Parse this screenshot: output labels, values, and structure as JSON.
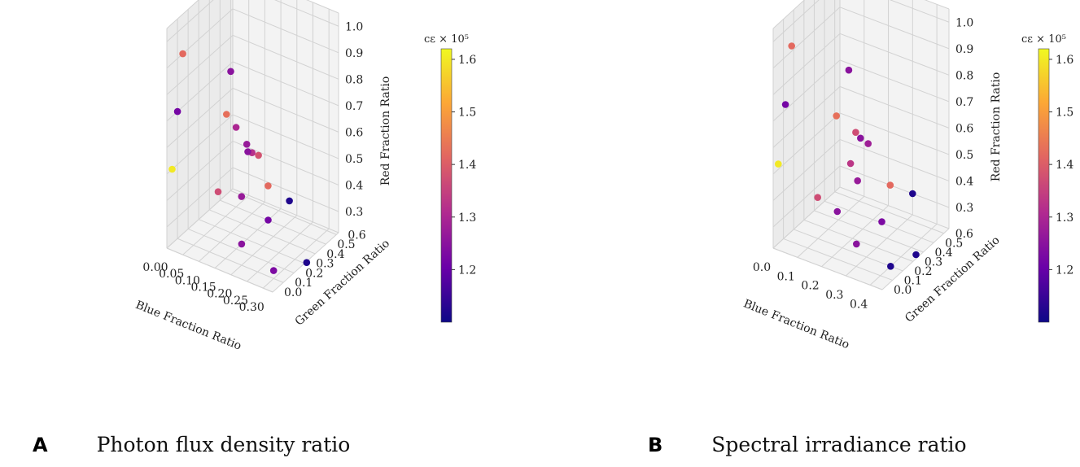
{
  "colors": {
    "grid": "#d2d2d2",
    "pane_light": "#f3f3f3",
    "pane_dark": "#ebebeb",
    "cmap": [
      "#0d0887",
      "#6a00a8",
      "#b12a90",
      "#e16462",
      "#fca636",
      "#f0f921"
    ]
  },
  "chart_data": [
    {
      "type": "scatter3d",
      "caption_letter": "A",
      "caption": "Photon flux density ratio",
      "xlabel": "Blue Fraction Ratio",
      "ylabel": "Green Fraction Ratio",
      "zlabel": "Red Fraction Ratio",
      "xlim": [
        0,
        0.33
      ],
      "ylim": [
        0,
        0.62
      ],
      "zlim": [
        0.22,
        1.05
      ],
      "xticks": [
        "0.00",
        "0.05",
        "0.10",
        "0.15",
        "0.20",
        "0.25",
        "0.30"
      ],
      "yticks": [
        "0.0",
        "0.1",
        "0.2",
        "0.3",
        "0.4",
        "0.5",
        "0.6"
      ],
      "zticks": [
        "0.3",
        "0.4",
        "0.5",
        "0.6",
        "0.7",
        "0.8",
        "0.9",
        "1.0"
      ],
      "colorbar_label": "cε × 10⁵",
      "colorbar_ticks": [
        "1.2",
        "1.3",
        "1.4",
        "1.5",
        "1.6"
      ],
      "colorbar_range": [
        1.1,
        1.62
      ],
      "points": [
        {
          "blue": 0.0,
          "green": 0.15,
          "red": 0.9,
          "c": 1.42
        },
        {
          "blue": 0.0,
          "green": 0.1,
          "red": 0.7,
          "c": 1.22
        },
        {
          "blue": 0.0,
          "green": 0.05,
          "red": 0.5,
          "c": 1.6
        },
        {
          "blue": 0.05,
          "green": 0.45,
          "red": 0.75,
          "c": 1.25
        },
        {
          "blue": 0.08,
          "green": 0.32,
          "red": 0.65,
          "c": 1.43
        },
        {
          "blue": 0.1,
          "green": 0.35,
          "red": 0.6,
          "c": 1.3
        },
        {
          "blue": 0.1,
          "green": 0.45,
          "red": 0.5,
          "c": 1.27
        },
        {
          "blue": 0.12,
          "green": 0.5,
          "red": 0.45,
          "c": 1.38
        },
        {
          "blue": 0.1,
          "green": 0.5,
          "red": 0.45,
          "c": 1.32
        },
        {
          "blue": 0.12,
          "green": 0.4,
          "red": 0.5,
          "c": 1.25
        },
        {
          "blue": 0.12,
          "green": 0.12,
          "red": 0.45,
          "c": 1.37
        },
        {
          "blue": 0.15,
          "green": 0.25,
          "red": 0.4,
          "c": 1.27
        },
        {
          "blue": 0.15,
          "green": 0.5,
          "red": 0.35,
          "c": 1.42
        },
        {
          "blue": 0.2,
          "green": 0.55,
          "red": 0.3,
          "c": 1.12
        },
        {
          "blue": 0.2,
          "green": 0.35,
          "red": 0.3,
          "c": 1.22
        },
        {
          "blue": 0.2,
          "green": 0.1,
          "red": 0.3,
          "c": 1.25
        },
        {
          "blue": 0.3,
          "green": 0.1,
          "red": 0.25,
          "c": 1.23
        },
        {
          "blue": 0.32,
          "green": 0.35,
          "red": 0.2,
          "c": 1.12
        }
      ]
    },
    {
      "type": "scatter3d",
      "caption_letter": "B",
      "caption": "Spectral irradiance ratio",
      "xlabel": "Blue Fraction Ratio",
      "ylabel": "Green Fraction Ratio",
      "zlabel": "Red Fraction Ratio",
      "xlim": [
        0,
        0.45
      ],
      "ylim": [
        0,
        0.65
      ],
      "zlim": [
        0.22,
        1.05
      ],
      "xticks": [
        "0.0",
        "0.1",
        "0.2",
        "0.3",
        "0.4"
      ],
      "yticks": [
        "0.0",
        "0.1",
        "0.2",
        "0.3",
        "0.4",
        "0.5",
        "0.6"
      ],
      "zticks": [
        "0.3",
        "0.4",
        "0.5",
        "0.6",
        "0.7",
        "0.8",
        "0.9",
        "1.0"
      ],
      "colorbar_label": "cε × 10⁵",
      "colorbar_ticks": [
        "1.2",
        "1.3",
        "1.4",
        "1.5",
        "1.6"
      ],
      "colorbar_range": [
        1.1,
        1.62
      ],
      "points": [
        {
          "blue": 0.0,
          "green": 0.18,
          "red": 0.92,
          "c": 1.42
        },
        {
          "blue": 0.0,
          "green": 0.12,
          "red": 0.72,
          "c": 1.22
        },
        {
          "blue": 0.0,
          "green": 0.05,
          "red": 0.52,
          "c": 1.6
        },
        {
          "blue": 0.1,
          "green": 0.5,
          "red": 0.75,
          "c": 1.25
        },
        {
          "blue": 0.1,
          "green": 0.38,
          "red": 0.62,
          "c": 1.43
        },
        {
          "blue": 0.15,
          "green": 0.45,
          "red": 0.55,
          "c": 1.37
        },
        {
          "blue": 0.14,
          "green": 0.52,
          "red": 0.5,
          "c": 1.25
        },
        {
          "blue": 0.18,
          "green": 0.5,
          "red": 0.5,
          "c": 1.28
        },
        {
          "blue": 0.15,
          "green": 0.4,
          "red": 0.45,
          "c": 1.33
        },
        {
          "blue": 0.2,
          "green": 0.35,
          "red": 0.42,
          "c": 1.27
        },
        {
          "blue": 0.25,
          "green": 0.55,
          "red": 0.35,
          "c": 1.42
        },
        {
          "blue": 0.3,
          "green": 0.65,
          "red": 0.3,
          "c": 1.12
        },
        {
          "blue": 0.12,
          "green": 0.15,
          "red": 0.4,
          "c": 1.37
        },
        {
          "blue": 0.18,
          "green": 0.2,
          "red": 0.35,
          "c": 1.25
        },
        {
          "blue": 0.3,
          "green": 0.35,
          "red": 0.3,
          "c": 1.23
        },
        {
          "blue": 0.28,
          "green": 0.15,
          "red": 0.28,
          "c": 1.25
        },
        {
          "blue": 0.4,
          "green": 0.2,
          "red": 0.22,
          "c": 1.12
        },
        {
          "blue": 0.42,
          "green": 0.4,
          "red": 0.2,
          "c": 1.12
        }
      ]
    }
  ]
}
